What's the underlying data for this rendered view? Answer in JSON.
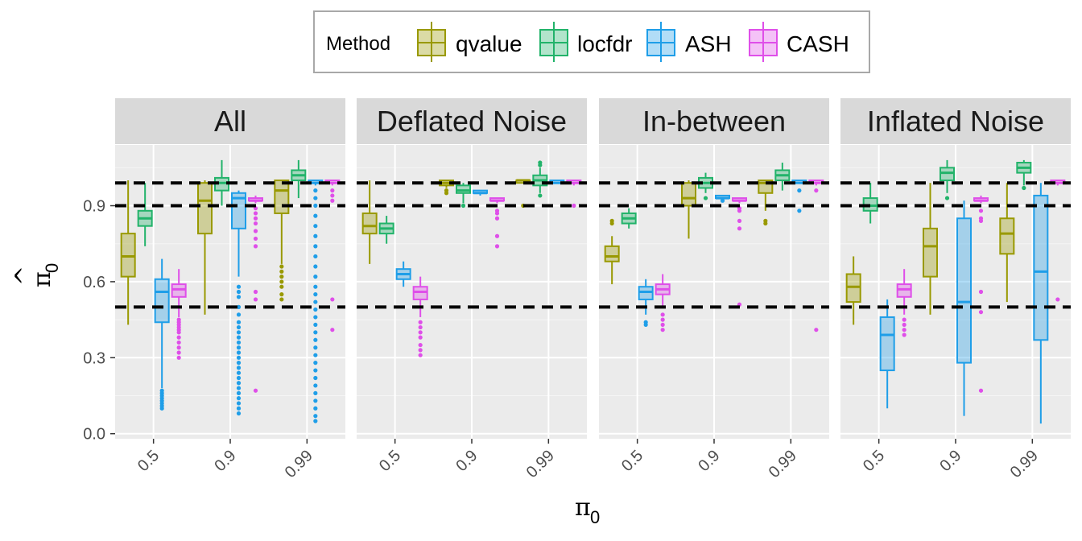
{
  "chart_data": {
    "type": "boxplot",
    "title": "",
    "xlabel": "π",
    "xlabel_subscript": "0",
    "ylabel": "π",
    "ylabel_subscript": "0",
    "ylabel_accent": "^",
    "ylim": [
      -0.02,
      1.14
    ],
    "y_ticks": [
      0.0,
      0.3,
      0.6,
      0.9
    ],
    "y_tick_labels": [
      "0.0",
      "0.3",
      "0.6",
      "0.9"
    ],
    "categories": [
      "0.5",
      "0.9",
      "0.99"
    ],
    "reference_lines": [
      0.5,
      0.9,
      0.99
    ],
    "grid": true,
    "legend": {
      "title": "Method",
      "position": "top",
      "entries": [
        {
          "name": "qvalue",
          "color": "#999900"
        },
        {
          "name": "locfdr",
          "color": "#22b36a"
        },
        {
          "name": "ASH",
          "color": "#1f9ee8"
        },
        {
          "name": "CASH",
          "color": "#df4fe9"
        }
      ]
    },
    "panels": [
      {
        "name": "All",
        "boxes": [
          {
            "method": "qvalue",
            "cat": "0.5",
            "q1": 0.62,
            "med": 0.7,
            "q3": 0.79,
            "wlo": 0.43,
            "whi": 1.0,
            "out": []
          },
          {
            "method": "locfdr",
            "cat": "0.5",
            "q1": 0.82,
            "med": 0.85,
            "q3": 0.88,
            "wlo": 0.74,
            "whi": 0.99,
            "out": []
          },
          {
            "method": "ASH",
            "cat": "0.5",
            "q1": 0.44,
            "med": 0.56,
            "q3": 0.61,
            "wlo": 0.18,
            "whi": 0.69,
            "out": [
              0.17,
              0.16,
              0.15,
              0.14,
              0.13,
              0.12,
              0.11,
              0.1
            ]
          },
          {
            "method": "CASH",
            "cat": "0.5",
            "q1": 0.54,
            "med": 0.57,
            "q3": 0.59,
            "wlo": 0.46,
            "whi": 0.65,
            "out": [
              0.45,
              0.44,
              0.43,
              0.42,
              0.41,
              0.4,
              0.38,
              0.36,
              0.34,
              0.32,
              0.3
            ]
          },
          {
            "method": "qvalue",
            "cat": "0.9",
            "q1": 0.79,
            "med": 0.92,
            "q3": 0.99,
            "wlo": 0.47,
            "whi": 1.0,
            "out": []
          },
          {
            "method": "locfdr",
            "cat": "0.9",
            "q1": 0.96,
            "med": 0.99,
            "q3": 1.01,
            "wlo": 0.9,
            "whi": 1.08,
            "out": []
          },
          {
            "method": "ASH",
            "cat": "0.9",
            "q1": 0.81,
            "med": 0.93,
            "q3": 0.95,
            "wlo": 0.62,
            "whi": 0.96,
            "out": [
              0.58,
              0.56,
              0.54,
              0.5,
              0.47,
              0.44,
              0.42,
              0.4,
              0.38,
              0.36,
              0.34,
              0.32,
              0.3,
              0.28,
              0.26,
              0.24,
              0.22,
              0.2,
              0.18,
              0.16,
              0.14,
              0.12,
              0.1,
              0.08
            ]
          },
          {
            "method": "CASH",
            "cat": "0.9",
            "q1": 0.92,
            "med": 0.92,
            "q3": 0.93,
            "wlo": 0.91,
            "whi": 0.94,
            "out": [
              0.89,
              0.87,
              0.85,
              0.83,
              0.8,
              0.77,
              0.74,
              0.56,
              0.53,
              0.17
            ]
          },
          {
            "method": "qvalue",
            "cat": "0.99",
            "q1": 0.87,
            "med": 0.96,
            "q3": 1.0,
            "wlo": 0.67,
            "whi": 1.0,
            "out": [
              0.66,
              0.64,
              0.62,
              0.6,
              0.58,
              0.55,
              0.53
            ]
          },
          {
            "method": "locfdr",
            "cat": "0.99",
            "q1": 1.0,
            "med": 1.02,
            "q3": 1.04,
            "wlo": 0.93,
            "whi": 1.08,
            "out": []
          },
          {
            "method": "ASH",
            "cat": "0.99",
            "q1": 0.99,
            "med": 0.99,
            "q3": 1.0,
            "wlo": 0.98,
            "whi": 1.0,
            "out": [
              0.96,
              0.93,
              0.9,
              0.86,
              0.82,
              0.78,
              0.74,
              0.7,
              0.66,
              0.62,
              0.58,
              0.55,
              0.52,
              0.49,
              0.46,
              0.43,
              0.4,
              0.37,
              0.34,
              0.31,
              0.28,
              0.25,
              0.22,
              0.19,
              0.16,
              0.13,
              0.1,
              0.07,
              0.05
            ]
          },
          {
            "method": "CASH",
            "cat": "0.99",
            "q1": 0.99,
            "med": 0.99,
            "q3": 1.0,
            "wlo": 0.98,
            "whi": 1.0,
            "out": [
              0.96,
              0.94,
              0.92,
              0.53,
              0.41
            ]
          }
        ]
      },
      {
        "name": "Deflated Noise",
        "boxes": [
          {
            "method": "qvalue",
            "cat": "0.5",
            "q1": 0.79,
            "med": 0.82,
            "q3": 0.87,
            "wlo": 0.67,
            "whi": 1.0,
            "out": []
          },
          {
            "method": "locfdr",
            "cat": "0.5",
            "q1": 0.79,
            "med": 0.81,
            "q3": 0.83,
            "wlo": 0.75,
            "whi": 0.86,
            "out": []
          },
          {
            "method": "ASH",
            "cat": "0.5",
            "q1": 0.61,
            "med": 0.63,
            "q3": 0.65,
            "wlo": 0.58,
            "whi": 0.68,
            "out": []
          },
          {
            "method": "CASH",
            "cat": "0.5",
            "q1": 0.53,
            "med": 0.56,
            "q3": 0.58,
            "wlo": 0.46,
            "whi": 0.62,
            "out": [
              0.44,
              0.42,
              0.4,
              0.38,
              0.35,
              0.33,
              0.31
            ]
          },
          {
            "method": "qvalue",
            "cat": "0.9",
            "q1": 0.98,
            "med": 0.99,
            "q3": 1.0,
            "wlo": 0.97,
            "whi": 1.0,
            "out": [
              0.96,
              0.95
            ]
          },
          {
            "method": "locfdr",
            "cat": "0.9",
            "q1": 0.95,
            "med": 0.96,
            "q3": 0.98,
            "wlo": 0.91,
            "whi": 0.99,
            "out": [
              0.9
            ]
          },
          {
            "method": "ASH",
            "cat": "0.9",
            "q1": 0.95,
            "med": 0.95,
            "q3": 0.96,
            "wlo": 0.94,
            "whi": 0.96,
            "out": []
          },
          {
            "method": "CASH",
            "cat": "0.9",
            "q1": 0.92,
            "med": 0.92,
            "q3": 0.93,
            "wlo": 0.91,
            "whi": 0.93,
            "out": [
              0.88,
              0.87,
              0.85,
              0.78,
              0.74
            ]
          },
          {
            "method": "qvalue",
            "cat": "0.99",
            "q1": 0.99,
            "med": 1.0,
            "q3": 1.0,
            "wlo": 0.99,
            "whi": 1.0,
            "out": [
              0.9
            ]
          },
          {
            "method": "locfdr",
            "cat": "0.99",
            "q1": 0.98,
            "med": 1.0,
            "q3": 1.02,
            "wlo": 0.95,
            "whi": 1.05,
            "out": [
              1.07,
              1.06,
              0.94
            ]
          },
          {
            "method": "ASH",
            "cat": "0.99",
            "q1": 0.99,
            "med": 0.99,
            "q3": 1.0,
            "wlo": 0.99,
            "whi": 1.0,
            "out": []
          },
          {
            "method": "CASH",
            "cat": "0.99",
            "q1": 0.99,
            "med": 0.99,
            "q3": 1.0,
            "wlo": 0.98,
            "whi": 1.0,
            "out": [
              0.9
            ]
          }
        ]
      },
      {
        "name": "In-between",
        "boxes": [
          {
            "method": "qvalue",
            "cat": "0.5",
            "q1": 0.68,
            "med": 0.7,
            "q3": 0.74,
            "wlo": 0.59,
            "whi": 0.78,
            "out": [
              0.84,
              0.83
            ]
          },
          {
            "method": "locfdr",
            "cat": "0.5",
            "q1": 0.83,
            "med": 0.85,
            "q3": 0.87,
            "wlo": 0.81,
            "whi": 0.89,
            "out": []
          },
          {
            "method": "ASH",
            "cat": "0.5",
            "q1": 0.53,
            "med": 0.56,
            "q3": 0.58,
            "wlo": 0.47,
            "whi": 0.61,
            "out": [
              0.44,
              0.43
            ]
          },
          {
            "method": "CASH",
            "cat": "0.5",
            "q1": 0.55,
            "med": 0.57,
            "q3": 0.59,
            "wlo": 0.5,
            "whi": 0.63,
            "out": [
              0.47,
              0.45,
              0.43,
              0.41
            ]
          },
          {
            "method": "qvalue",
            "cat": "0.9",
            "q1": 0.9,
            "med": 0.93,
            "q3": 0.99,
            "wlo": 0.77,
            "whi": 1.0,
            "out": []
          },
          {
            "method": "locfdr",
            "cat": "0.9",
            "q1": 0.97,
            "med": 0.99,
            "q3": 1.01,
            "wlo": 0.95,
            "whi": 1.03,
            "out": [
              0.93
            ]
          },
          {
            "method": "ASH",
            "cat": "0.9",
            "q1": 0.93,
            "med": 0.93,
            "q3": 0.94,
            "wlo": 0.92,
            "whi": 0.94,
            "out": [
              0.92
            ]
          },
          {
            "method": "CASH",
            "cat": "0.9",
            "q1": 0.92,
            "med": 0.92,
            "q3": 0.93,
            "wlo": 0.91,
            "whi": 0.93,
            "out": [
              0.89,
              0.88,
              0.84,
              0.81,
              0.51
            ]
          },
          {
            "method": "qvalue",
            "cat": "0.99",
            "q1": 0.95,
            "med": 0.99,
            "q3": 1.0,
            "wlo": 0.88,
            "whi": 1.0,
            "out": [
              0.84,
              0.83
            ]
          },
          {
            "method": "locfdr",
            "cat": "0.99",
            "q1": 1.0,
            "med": 1.02,
            "q3": 1.04,
            "wlo": 0.96,
            "whi": 1.07,
            "out": []
          },
          {
            "method": "ASH",
            "cat": "0.99",
            "q1": 0.99,
            "med": 0.99,
            "q3": 1.0,
            "wlo": 0.99,
            "whi": 1.0,
            "out": [
              0.96,
              0.88
            ]
          },
          {
            "method": "CASH",
            "cat": "0.99",
            "q1": 0.99,
            "med": 0.99,
            "q3": 1.0,
            "wlo": 0.98,
            "whi": 1.0,
            "out": [
              0.96,
              0.41
            ]
          }
        ]
      },
      {
        "name": "Inflated Noise",
        "boxes": [
          {
            "method": "qvalue",
            "cat": "0.5",
            "q1": 0.52,
            "med": 0.58,
            "q3": 0.63,
            "wlo": 0.43,
            "whi": 0.7,
            "out": []
          },
          {
            "method": "locfdr",
            "cat": "0.5",
            "q1": 0.88,
            "med": 0.9,
            "q3": 0.93,
            "wlo": 0.83,
            "whi": 0.99,
            "out": []
          },
          {
            "method": "ASH",
            "cat": "0.5",
            "q1": 0.25,
            "med": 0.39,
            "q3": 0.46,
            "wlo": 0.1,
            "whi": 0.53,
            "out": []
          },
          {
            "method": "CASH",
            "cat": "0.5",
            "q1": 0.54,
            "med": 0.57,
            "q3": 0.59,
            "wlo": 0.47,
            "whi": 0.65,
            "out": [
              0.45,
              0.43,
              0.41,
              0.39
            ]
          },
          {
            "method": "qvalue",
            "cat": "0.9",
            "q1": 0.62,
            "med": 0.74,
            "q3": 0.81,
            "wlo": 0.47,
            "whi": 0.99,
            "out": []
          },
          {
            "method": "locfdr",
            "cat": "0.9",
            "q1": 1.0,
            "med": 1.03,
            "q3": 1.05,
            "wlo": 0.95,
            "whi": 1.08,
            "out": [
              0.93
            ]
          },
          {
            "method": "ASH",
            "cat": "0.9",
            "q1": 0.28,
            "med": 0.52,
            "q3": 0.85,
            "wlo": 0.07,
            "whi": 0.92,
            "out": []
          },
          {
            "method": "CASH",
            "cat": "0.9",
            "q1": 0.92,
            "med": 0.92,
            "q3": 0.93,
            "wlo": 0.91,
            "whi": 0.94,
            "out": [
              0.88,
              0.85,
              0.84,
              0.56,
              0.48,
              0.17
            ]
          },
          {
            "method": "qvalue",
            "cat": "0.99",
            "q1": 0.71,
            "med": 0.79,
            "q3": 0.85,
            "wlo": 0.52,
            "whi": 0.99,
            "out": []
          },
          {
            "method": "locfdr",
            "cat": "0.99",
            "q1": 1.03,
            "med": 1.05,
            "q3": 1.07,
            "wlo": 0.98,
            "whi": 1.08,
            "out": [
              0.97
            ]
          },
          {
            "method": "ASH",
            "cat": "0.99",
            "q1": 0.37,
            "med": 0.64,
            "q3": 0.94,
            "wlo": 0.04,
            "whi": 0.99,
            "out": []
          },
          {
            "method": "CASH",
            "cat": "0.99",
            "q1": 0.99,
            "med": 0.99,
            "q3": 1.0,
            "wlo": 0.98,
            "whi": 1.0,
            "out": [
              0.53
            ]
          }
        ]
      }
    ]
  }
}
